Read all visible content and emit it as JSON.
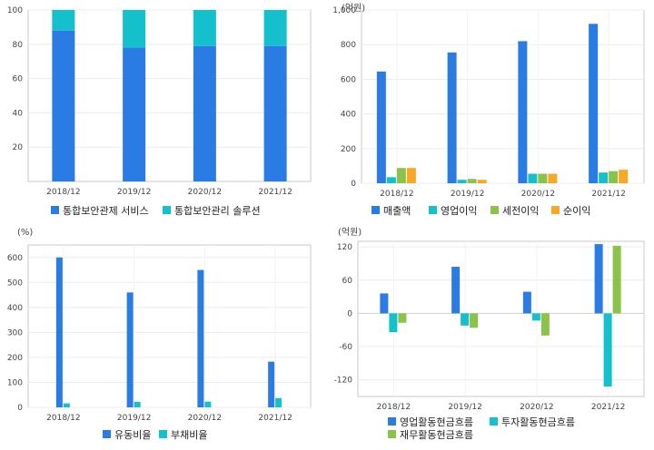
{
  "colors": {
    "blue": "#2b7be4",
    "cyan": "#14c0cc",
    "green": "#8bc34a",
    "orange": "#f9a825"
  },
  "chart_data": [
    {
      "id": "revenue-mix",
      "type": "bar",
      "stacked": true,
      "unit": "",
      "categories": [
        "2018/12",
        "2019/12",
        "2020/12",
        "2021/12"
      ],
      "ylim": [
        0,
        100
      ],
      "yticks": [
        "20",
        "40",
        "60",
        "80",
        "100"
      ],
      "yticks_values": [
        20,
        40,
        60,
        80,
        100
      ],
      "series": [
        {
          "name": "통합보안관제 서비스",
          "color": "blue",
          "values": [
            88,
            78,
            79,
            79
          ]
        },
        {
          "name": "통합보안관리 솔루션",
          "color": "cyan",
          "values": [
            12,
            22,
            21,
            21
          ]
        }
      ]
    },
    {
      "id": "profit",
      "type": "bar",
      "unit": "(억원)",
      "categories": [
        "2018/12",
        "2019/12",
        "2020/12",
        "2021/12"
      ],
      "ylim": [
        0,
        1000
      ],
      "yticks": [
        "0",
        "200",
        "400",
        "600",
        "800",
        "1,000"
      ],
      "yticks_values": [
        0,
        200,
        400,
        600,
        800,
        1000
      ],
      "series": [
        {
          "name": "매출액",
          "color": "blue",
          "values": [
            645,
            755,
            820,
            920
          ]
        },
        {
          "name": "영업이익",
          "color": "cyan",
          "values": [
            35,
            20,
            55,
            62
          ]
        },
        {
          "name": "세전이익",
          "color": "green",
          "values": [
            88,
            25,
            55,
            70
          ]
        },
        {
          "name": "순이익",
          "color": "orange",
          "values": [
            88,
            20,
            55,
            78
          ]
        }
      ]
    },
    {
      "id": "ratios",
      "type": "bar",
      "unit": "(%)",
      "categories": [
        "2018/12",
        "2019/12",
        "2020/12",
        "2021/12"
      ],
      "ylim": [
        0,
        650
      ],
      "yticks": [
        "0",
        "100",
        "200",
        "300",
        "400",
        "500",
        "600"
      ],
      "yticks_values": [
        0,
        100,
        200,
        300,
        400,
        500,
        600
      ],
      "series": [
        {
          "name": "유동비율",
          "color": "blue",
          "values": [
            600,
            460,
            550,
            183
          ]
        },
        {
          "name": "부채비율",
          "color": "cyan",
          "values": [
            16,
            22,
            23,
            37
          ]
        }
      ]
    },
    {
      "id": "cashflow",
      "type": "bar",
      "unit": "(억원)",
      "categories": [
        "2018/12",
        "2019/12",
        "2020/12",
        "2021/12"
      ],
      "ylim": [
        -150,
        130
      ],
      "yticks": [
        "-120",
        "-60",
        "0",
        "60",
        "120"
      ],
      "yticks_values": [
        -120,
        -60,
        0,
        60,
        120
      ],
      "series": [
        {
          "name": "영업활동현금흐름",
          "color": "blue",
          "values": [
            36,
            84,
            39,
            125
          ]
        },
        {
          "name": "투자활동현금흐름",
          "color": "cyan",
          "values": [
            -34,
            -22,
            -13,
            -132
          ]
        },
        {
          "name": "재무활동현금흐름",
          "color": "green",
          "values": [
            -17,
            -26,
            -40,
            122
          ]
        }
      ]
    }
  ]
}
